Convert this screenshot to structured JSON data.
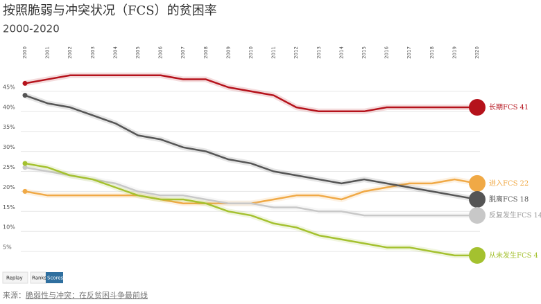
{
  "chart_data": {
    "type": "line",
    "title": "按照脆弱与冲突状况（FCS）的贫困率",
    "subtitle": "2000-2020",
    "x": [
      2000,
      2001,
      2002,
      2003,
      2004,
      2005,
      2006,
      2007,
      2008,
      2009,
      2010,
      2011,
      2012,
      2013,
      2014,
      2015,
      2016,
      2017,
      2018,
      2019,
      2020
    ],
    "xlim": [
      2000,
      2020
    ],
    "xticks": [
      2000,
      2001,
      2002,
      2003,
      2004,
      2005,
      2006,
      2007,
      2008,
      2009,
      2010,
      2011,
      2012,
      2013,
      2014,
      2015,
      2016,
      2017,
      2018,
      2019,
      2020
    ],
    "ylim": [
      0,
      50
    ],
    "yticks": [
      {
        "value": 5,
        "label": "5%"
      },
      {
        "value": 10,
        "label": "10%"
      },
      {
        "value": 15,
        "label": "15%"
      },
      {
        "value": 20,
        "label": "20%"
      },
      {
        "value": 25,
        "label": "25%"
      },
      {
        "value": 30,
        "label": "30%"
      },
      {
        "value": 35,
        "label": "35%"
      },
      {
        "value": 40,
        "label": "40%"
      },
      {
        "value": 45,
        "label": "45%"
      }
    ],
    "grid": true,
    "series": [
      {
        "name": "长期FCS",
        "color": "#b5121b",
        "values": [
          47,
          48,
          49,
          49,
          49,
          49,
          49,
          48,
          48,
          46,
          45,
          44,
          41,
          40,
          40,
          40,
          41,
          41,
          41,
          41,
          41
        ]
      },
      {
        "name": "进入FCS",
        "color": "#f0a946",
        "values": [
          20,
          19,
          19,
          19,
          19,
          19,
          18,
          17,
          17,
          17,
          17,
          18,
          19,
          19,
          18,
          20,
          21,
          22,
          22,
          23,
          22
        ]
      },
      {
        "name": "脱离FCS",
        "color": "#555555",
        "values": [
          44,
          42,
          41,
          39,
          37,
          34,
          33,
          31,
          30,
          28,
          27,
          25,
          24,
          23,
          22,
          23,
          22,
          21,
          20,
          19,
          18
        ]
      },
      {
        "name": "反复发生FCS",
        "color": "#c8c8c8",
        "values": [
          26,
          25,
          24,
          23,
          22,
          20,
          19,
          19,
          18,
          17,
          17,
          16,
          16,
          15,
          15,
          14,
          14,
          14,
          14,
          14,
          14
        ]
      },
      {
        "name": "从未发生FCS",
        "color": "#a4c12f",
        "values": [
          27,
          26,
          24,
          23,
          21,
          19,
          18,
          18,
          17,
          15,
          14,
          12,
          11,
          9,
          8,
          7,
          6,
          6,
          5,
          4,
          4
        ]
      }
    ],
    "buttons": [
      "Replay",
      "Ranks",
      "Scores"
    ],
    "source_label": "来源：",
    "source": "脆弱性与冲突：在反贫困斗争最前线"
  }
}
